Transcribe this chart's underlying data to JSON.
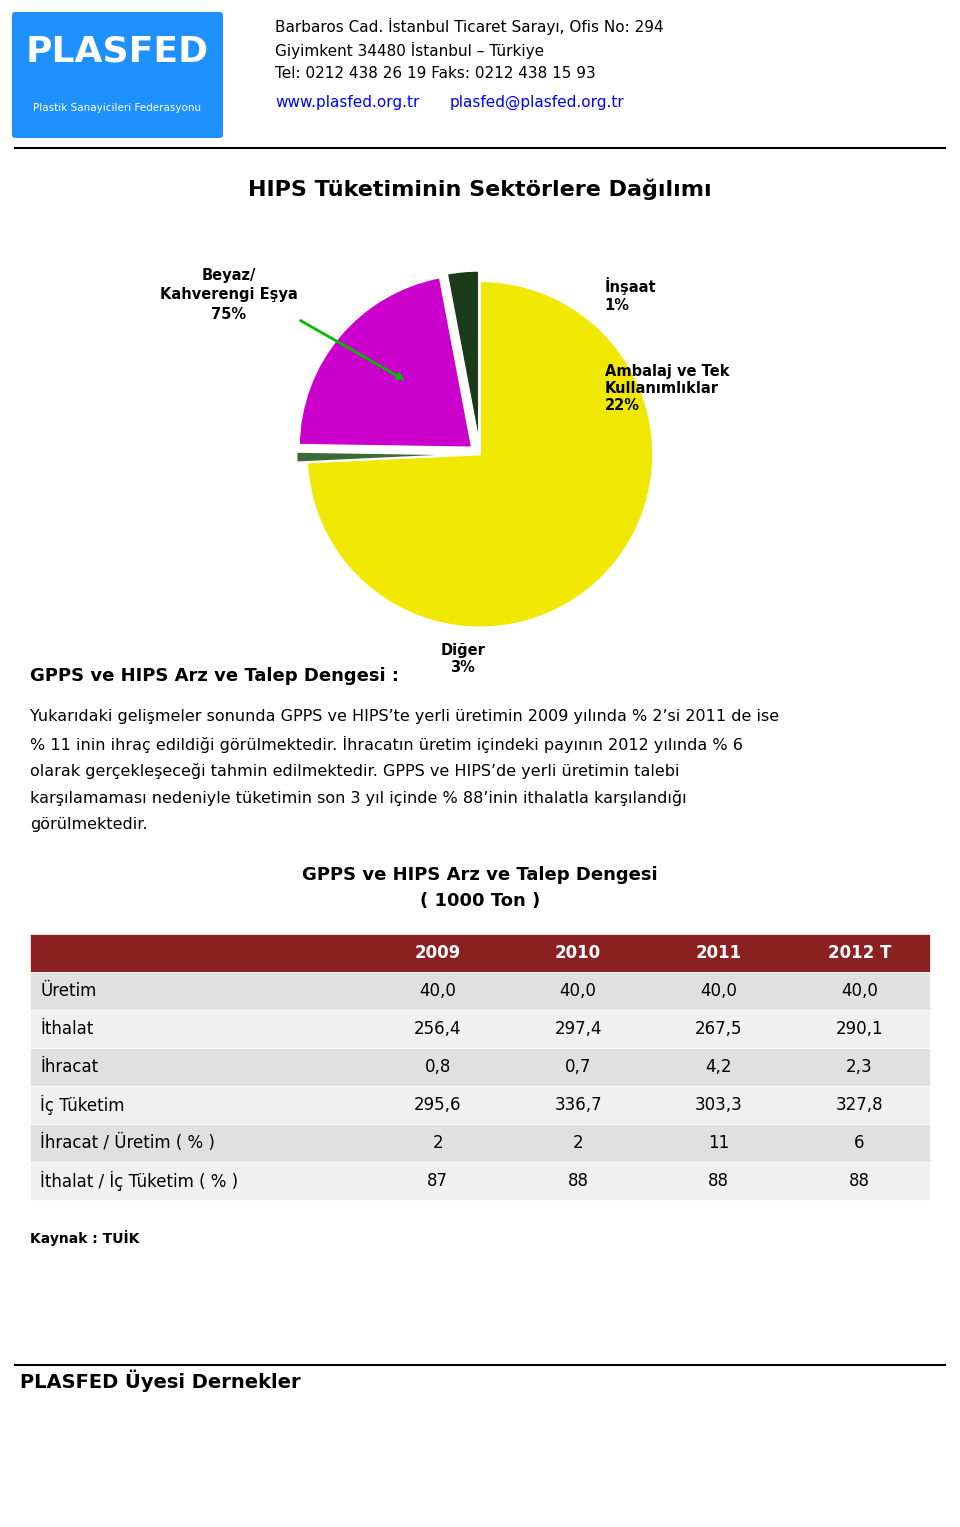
{
  "header_line1": "Barbaros Cad. İstanbul Ticaret Sarayı, Ofis No: 294",
  "header_line2": "Giyimkent 34480 İstanbul – Türkiye",
  "header_line3": "Tel: 0212 438 26 19 Faks: 0212 438 15 93",
  "header_url1": "www.plasfed.org.tr",
  "header_url2": "plasfed@plasfed.org.tr",
  "chart_title": "HIPS Tüketiminin Sektörlere Dağılımı",
  "pie_sizes": [
    75,
    1,
    22,
    3
  ],
  "pie_colors": [
    "#F0E800",
    "#3A6B35",
    "#CC00CC",
    "#1A3A1A"
  ],
  "section_title": "GPPS ve HIPS Arz ve Talep Dengesi :",
  "body_lines": [
    "Yukarıdaki gelişmeler sonunda GPPS ve HIPS’te yerli üretimin 2009 yılında % 2’si 2011 de ise",
    "% 11 inin ihraç edildiği görülmektedir. İhracatın üretim içindeki payının 2012 yılında % 6",
    "olarak gerçekleşeceği tahmin edilmektedir. GPPS ve HIPS’de yerli üretimin talebi",
    "karşılamaması nedeniyle tüketimin son 3 yıl içinde % 88’inin ithalatla karşılandığı",
    "görülmektedir."
  ],
  "table_title_line1": "GPPS ve HIPS Arz ve Talep Dengesi",
  "table_title_line2": "( 1000 Ton )",
  "table_header": [
    "",
    "2009",
    "2010",
    "2011",
    "2012 T"
  ],
  "table_rows": [
    [
      "Üretim",
      "40,0",
      "40,0",
      "40,0",
      "40,0"
    ],
    [
      "İthalat",
      "256,4",
      "297,4",
      "267,5",
      "290,1"
    ],
    [
      "İhracat",
      "0,8",
      "0,7",
      "4,2",
      "2,3"
    ],
    [
      "İç Tüketim",
      "295,6",
      "336,7",
      "303,3",
      "327,8"
    ],
    [
      "İhracat / Üretim ( % )",
      "2",
      "2",
      "11",
      "6"
    ],
    [
      "İthalat / İç Tüketim ( % )",
      "87",
      "88",
      "88",
      "88"
    ]
  ],
  "table_header_bg": "#8B2020",
  "table_row_bg_odd": "#E0E0E0",
  "table_row_bg_even": "#F0F0F0",
  "footer_text": "Kaynak : TUİK",
  "footer_title": "PLASFED Üyesi Dernekler",
  "logo_bg": "#1E90FF",
  "logo_text": "PLASFED",
  "logo_sub": "Plastik Sanayicileri Federasyonu"
}
